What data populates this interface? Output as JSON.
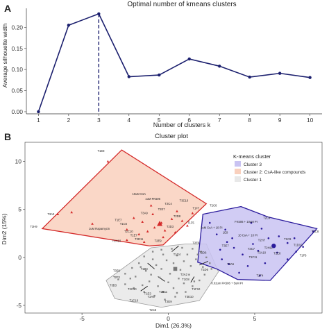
{
  "chart_data": [
    {
      "panel": "A",
      "type": "line",
      "title": "Optimal number of kmeans clusters",
      "xlabel": "Number of clusters k",
      "ylabel": "Average silhouette width",
      "x": [
        1,
        2,
        3,
        4,
        5,
        6,
        7,
        8,
        9,
        10
      ],
      "values": [
        0.0,
        0.205,
        0.232,
        0.083,
        0.087,
        0.125,
        0.108,
        0.082,
        0.091,
        0.081
      ],
      "xticks": [
        "1",
        "2",
        "3",
        "4",
        "5",
        "6",
        "7",
        "8",
        "9",
        "10"
      ],
      "yticks": [
        "0.00",
        "0.05",
        "0.10",
        "0.15",
        "0.20"
      ],
      "ylim": [
        -0.005,
        0.245
      ],
      "xlim": [
        0.6,
        10.4
      ],
      "optimal_k": 3,
      "line_color": "#1b1f6e",
      "grid": false
    },
    {
      "panel": "B",
      "type": "scatter",
      "title": "Cluster plot",
      "xlabel": "Dim1 (26.3%)",
      "ylabel": "Dim2 (15%)",
      "xticks": [
        "-5",
        "0",
        "5"
      ],
      "yticks": [
        "-5",
        "0",
        "5",
        "10"
      ],
      "xlim": [
        -8.3,
        8.9
      ],
      "ylim": [
        -5.8,
        12.0
      ],
      "legend": {
        "title": "K-means cluster",
        "position": "top-right",
        "entries": [
          "Cluster 3",
          "Cluster 2: CsA-like compounds",
          "Cluster 1"
        ]
      },
      "series": [
        {
          "name": "Cluster 3",
          "color": "#2a1a9c",
          "fill": "#c9c3f2",
          "hull": [
            [
              4.2,
              5.3
            ],
            [
              2.0,
              4.5
            ],
            [
              1.7,
              -0.5
            ],
            [
              2.8,
              -1.2
            ],
            [
              4.0,
              -2.3
            ],
            [
              5.9,
              -2.4
            ],
            [
              8.6,
              3.0
            ],
            [
              5.8,
              4.2
            ]
          ],
          "center": [
            6.1,
            1.2
          ],
          "points": [
            [
              2.4,
              3.6
            ],
            [
              3.3,
              2.9
            ],
            [
              2.8,
              2.4
            ],
            [
              3.7,
              2.0
            ],
            [
              3.4,
              1.6
            ],
            [
              4.8,
              3.6
            ],
            [
              5.4,
              3.0
            ],
            [
              6.4,
              2.2
            ],
            [
              7.3,
              2.0
            ],
            [
              6.9,
              1.5
            ],
            [
              5.8,
              2.0
            ],
            [
              4.9,
              1.4
            ],
            [
              3.8,
              1.0
            ],
            [
              3.0,
              0.8
            ],
            [
              4.3,
              0.3
            ],
            [
              5.2,
              0.7
            ],
            [
              6.3,
              0.5
            ],
            [
              7.4,
              0.6
            ],
            [
              7.8,
              1.1
            ],
            [
              6.9,
              -0.2
            ],
            [
              5.6,
              -0.6
            ],
            [
              4.6,
              -0.9
            ],
            [
              3.5,
              -0.7
            ],
            [
              3.1,
              -0.2
            ],
            [
              4.1,
              -1.6
            ],
            [
              5.3,
              -1.9
            ],
            [
              8.4,
              2.7
            ]
          ],
          "labels": [
            [
              "T2C4",
              5.7,
              4.0
            ],
            [
              "FK506 + 10uM PI",
              4.5,
              3.6
            ],
            [
              "1uM CsA + 10 PI",
              2.5,
              3.0
            ],
            [
              "1E9",
              3.3,
              2.5
            ],
            [
              "10 CsA + 10 PI",
              4.6,
              2.2
            ],
            [
              "T2H7",
              5.4,
              1.7
            ],
            [
              "T1C9",
              6.9,
              1.8
            ],
            [
              "T2C8",
              8.5,
              2.6
            ],
            [
              "T3E7",
              3.3,
              1.1
            ],
            [
              "T2H11",
              5.8,
              0.9
            ],
            [
              "T1D10",
              7.5,
              1.2
            ],
            [
              "T3C7",
              4.8,
              0.8
            ],
            [
              "T3A10",
              5.4,
              0.4
            ],
            [
              "T2E8",
              6.3,
              0.3
            ],
            [
              "T1F6",
              7.8,
              0.1
            ],
            [
              "T1F11",
              4.9,
              -0.1
            ],
            [
              "T3A6",
              3.6,
              -0.8
            ],
            [
              "T2F4",
              5.3,
              -2.0
            ],
            [
              "0.02um FK506 + 5uM PI",
              3.4,
              -2.8
            ]
          ]
        },
        {
          "name": "Cluster 2: CsA-like compounds",
          "color": "#d42a2a",
          "fill": "#f9d0bd",
          "hull": [
            [
              -2.7,
              11.2
            ],
            [
              -7.3,
              3.0
            ],
            [
              -1.1,
              1.2
            ],
            [
              -0.3,
              1.3
            ],
            [
              2.2,
              5.6
            ]
          ],
          "center": [
            -0.5,
            3.5
          ],
          "points": [
            [
              -6.4,
              4.5
            ],
            [
              -5.6,
              4.7
            ],
            [
              -4.4,
              3.5
            ],
            [
              -2.4,
              2.9
            ],
            [
              -1.7,
              2.4
            ],
            [
              -1.2,
              2.7
            ],
            [
              -0.8,
              3.1
            ],
            [
              -0.4,
              3.6
            ],
            [
              -0.2,
              2.8
            ],
            [
              0.4,
              2.6
            ],
            [
              0.2,
              4.0
            ],
            [
              -0.9,
              4.5
            ],
            [
              -1.5,
              3.7
            ],
            [
              -2.0,
              4.1
            ],
            [
              -1.0,
              5.4
            ],
            [
              0.8,
              3.8
            ],
            [
              0.5,
              4.8
            ],
            [
              1.4,
              4.6
            ],
            [
              1.1,
              3.3
            ],
            [
              -3.5,
              10.0
            ],
            [
              -2.4,
              1.8
            ],
            [
              -1.4,
              1.6
            ],
            [
              -0.3,
              2.1
            ]
          ],
          "labels": [
            [
              "T1E8",
              -3.9,
              11.0
            ],
            [
              "10uM CsA",
              -1.7,
              6.5
            ],
            [
              "1uM FK506",
              -0.9,
              6.0
            ],
            [
              "T3C10",
              0.9,
              5.8
            ],
            [
              "T2C4",
              0.0,
              5.5
            ],
            [
              "T2E7",
              -0.4,
              4.9
            ],
            [
              "T3A9",
              -1.4,
              4.5
            ],
            [
              "T1F7",
              1.6,
              5.0
            ],
            [
              "T2D8",
              0.5,
              4.2
            ],
            [
              "T3A3",
              -6.8,
              4.4
            ],
            [
              "T1E7",
              -2.9,
              3.8
            ],
            [
              "T1C6",
              -2.6,
              3.4
            ],
            [
              "T1F5",
              1.3,
              3.5
            ],
            [
              "1uM Rapamycin",
              -4.0,
              2.9
            ],
            [
              "T2D3",
              0.1,
              3.1
            ],
            [
              "T2C10",
              -2.3,
              2.6
            ],
            [
              "T1E7",
              -2.0,
              2.2
            ],
            [
              "T1H10",
              -3.0,
              1.6
            ],
            [
              "T2D11",
              -1.7,
              1.8
            ],
            [
              "T3H9",
              -7.8,
              3.1
            ],
            [
              "T2C6",
              2.6,
              5.3
            ]
          ]
        },
        {
          "name": "Cluster 1",
          "color": "#9a9a9a",
          "fill": "#e8e8e8",
          "hull": [
            [
              -1.0,
              1.0
            ],
            [
              1.0,
              1.4
            ],
            [
              2.2,
              1.4
            ],
            [
              2.9,
              -1.5
            ],
            [
              1.8,
              -4.5
            ],
            [
              -0.4,
              -5.2
            ],
            [
              -3.1,
              -4.3
            ],
            [
              -3.6,
              -2.4
            ]
          ],
          "center": [
            0.4,
            -1.2
          ],
          "points": [
            [
              -2.9,
              -2.3
            ],
            [
              -2.5,
              -1.7
            ],
            [
              -2.1,
              -1.1
            ],
            [
              -1.7,
              -0.6
            ],
            [
              -1.4,
              0.1
            ],
            [
              -0.9,
              0.6
            ],
            [
              -0.4,
              0.8
            ],
            [
              0.2,
              0.9
            ],
            [
              0.8,
              1.0
            ],
            [
              1.4,
              0.9
            ],
            [
              1.9,
              0.6
            ],
            [
              2.2,
              0.0
            ],
            [
              2.4,
              -0.6
            ],
            [
              2.5,
              -1.2
            ],
            [
              2.1,
              -1.8
            ],
            [
              1.8,
              -2.4
            ],
            [
              1.4,
              -3.0
            ],
            [
              1.0,
              -3.6
            ],
            [
              0.4,
              -4.1
            ],
            [
              -0.2,
              -4.4
            ],
            [
              -0.8,
              -4.0
            ],
            [
              -1.4,
              -3.6
            ],
            [
              -2.0,
              -3.2
            ],
            [
              -2.5,
              -2.8
            ],
            [
              -1.9,
              -2.0
            ],
            [
              -1.3,
              -1.4
            ],
            [
              -0.7,
              -0.8
            ],
            [
              -0.1,
              -0.3
            ],
            [
              0.5,
              0.2
            ],
            [
              1.1,
              0.3
            ],
            [
              1.6,
              -0.2
            ],
            [
              1.3,
              -0.9
            ],
            [
              0.7,
              -1.3
            ],
            [
              0.1,
              -1.7
            ],
            [
              -0.5,
              -2.1
            ],
            [
              -1.1,
              -2.5
            ],
            [
              -0.6,
              -3.0
            ],
            [
              0.0,
              -2.6
            ],
            [
              0.6,
              -2.2
            ],
            [
              1.2,
              -1.8
            ],
            [
              0.9,
              -2.7
            ],
            [
              0.3,
              -3.2
            ],
            [
              -0.3,
              -3.6
            ],
            [
              -0.9,
              -0.2
            ],
            [
              -0.3,
              0.3
            ],
            [
              0.3,
              -0.6
            ],
            [
              -1.6,
              -1.0
            ],
            [
              -2.2,
              -2.2
            ],
            [
              2.0,
              -1.0
            ],
            [
              1.7,
              0.3
            ],
            [
              0.9,
              -0.4
            ],
            [
              -0.4,
              -1.2
            ],
            [
              -1.0,
              -1.8
            ],
            [
              -1.5,
              -2.9
            ],
            [
              0.5,
              -3.7
            ],
            [
              1.5,
              -2.5
            ]
          ],
          "labels": [
            [
              "T2E9",
              -0.6,
              1.6
            ],
            [
              "T1G4",
              0.5,
              0.2
            ],
            [
              "T2E6",
              1.6,
              1.4
            ],
            [
              "T2D6",
              2.0,
              0.4
            ],
            [
              "T3E6",
              -3.0,
              -1.5
            ],
            [
              "T2F3",
              -3.0,
              -2.2
            ],
            [
              "T3B3",
              -3.2,
              -3.0
            ],
            [
              "T2C10",
              -2.1,
              -3.4
            ],
            [
              "T1E3",
              -1.2,
              -3.9
            ],
            [
              "T2A6",
              -1.0,
              -4.2
            ],
            [
              "T2E9",
              0.0,
              -4.7
            ],
            [
              "T2B11",
              -0.3,
              -3.7
            ],
            [
              "T1C10",
              -2.0,
              -4.6
            ],
            [
              "T2C6",
              -0.9,
              -5.6
            ],
            [
              "T2A2",
              0.9,
              -1.9
            ],
            [
              "T1G8",
              1.0,
              -2.4
            ],
            [
              "T1F10",
              1.6,
              -3.4
            ],
            [
              "T3E10",
              1.2,
              -4.2
            ],
            [
              "T1D6",
              2.1,
              -1.4
            ],
            [
              "T1B3",
              -1.4,
              -1.3
            ]
          ]
        }
      ],
      "connectors": [
        [
          [
            0.2,
            0.6
          ],
          [
            0.6,
            1.2
          ]
        ],
        [
          [
            -0.2,
            -2.5
          ],
          [
            -0.6,
            -2.0
          ]
        ],
        [
          [
            1.3,
            -2.6
          ],
          [
            1.5,
            -2.0
          ]
        ],
        [
          [
            -1.6,
            -3.5
          ],
          [
            -1.2,
            -3.0
          ]
        ],
        [
          [
            1.8,
            -0.8
          ],
          [
            2.3,
            -0.4
          ]
        ],
        [
          [
            -0.8,
            -1.2
          ],
          [
            -1.2,
            -0.6
          ]
        ]
      ]
    }
  ]
}
